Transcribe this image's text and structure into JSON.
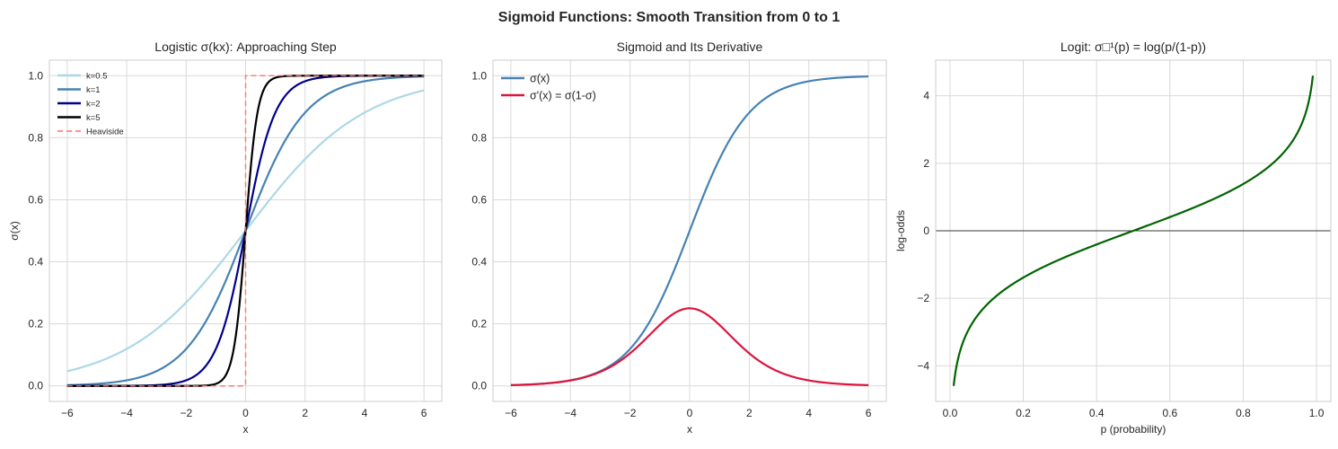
{
  "figure_title": "Sigmoid Functions: Smooth Transition from 0 to 1",
  "chart_data": [
    {
      "type": "line",
      "title": "Logistic σ(kx): Approaching Step",
      "xlabel": "x",
      "ylabel": "σ(x)",
      "xlim": [
        -6.6,
        6.6
      ],
      "ylim": [
        -0.05,
        1.05
      ],
      "xticks": [
        -6,
        -4,
        -2,
        0,
        2,
        4,
        6
      ],
      "yticks": [
        0.0,
        0.2,
        0.4,
        0.6,
        0.8,
        1.0
      ],
      "grid": true,
      "legend": "top-left",
      "x_range": [
        -6,
        6
      ],
      "series": [
        {
          "name": "k=0.5",
          "function": "1/(1+exp(-0.5x))",
          "k": 0.5,
          "color": "#add8e6",
          "style": "solid"
        },
        {
          "name": "k=1",
          "function": "1/(1+exp(-x))",
          "k": 1,
          "color": "#4682b4",
          "style": "solid"
        },
        {
          "name": "k=2",
          "function": "1/(1+exp(-2x))",
          "k": 2,
          "color": "#00008b",
          "style": "solid"
        },
        {
          "name": "k=5",
          "function": "1/(1+exp(-5x))",
          "k": 5,
          "color": "#000000",
          "style": "solid"
        },
        {
          "name": "Heaviside",
          "function": "step(x)",
          "x": [
            -6,
            0,
            0,
            6
          ],
          "y": [
            0,
            0,
            1,
            1
          ],
          "color": "#ff6f61",
          "style": "dashed"
        }
      ]
    },
    {
      "type": "line",
      "title": "Sigmoid and Its Derivative",
      "xlabel": "x",
      "ylabel": "",
      "xlim": [
        -6.6,
        6.6
      ],
      "ylim": [
        -0.05,
        1.05
      ],
      "xticks": [
        -6,
        -4,
        -2,
        0,
        2,
        4,
        6
      ],
      "yticks": [
        0.0,
        0.2,
        0.4,
        0.6,
        0.8,
        1.0
      ],
      "grid": true,
      "legend": "top-left",
      "x_range": [
        -6,
        6
      ],
      "series": [
        {
          "name": "σ(x)",
          "function": "sigmoid",
          "color": "#4682b4",
          "style": "solid"
        },
        {
          "name": "σ'(x) = σ(1-σ)",
          "function": "sigmoid_derivative",
          "color": "#dc143c",
          "style": "solid"
        }
      ]
    },
    {
      "type": "line",
      "title": "Logit: σ□¹(p) = log(p/(1-p))",
      "xlabel": "p (probability)",
      "ylabel": "log-odds",
      "xlim": [
        -0.039,
        1.039
      ],
      "ylim": [
        -5.055,
        5.055
      ],
      "xticks": [
        0.0,
        0.2,
        0.4,
        0.6,
        0.8,
        1.0
      ],
      "yticks": [
        -4,
        -2,
        0,
        2,
        4
      ],
      "grid": true,
      "hline": 0,
      "x_range": [
        0.01,
        0.99
      ],
      "series": [
        {
          "function": "log(p/(1-p))",
          "color": "#006400",
          "style": "solid"
        }
      ]
    }
  ]
}
